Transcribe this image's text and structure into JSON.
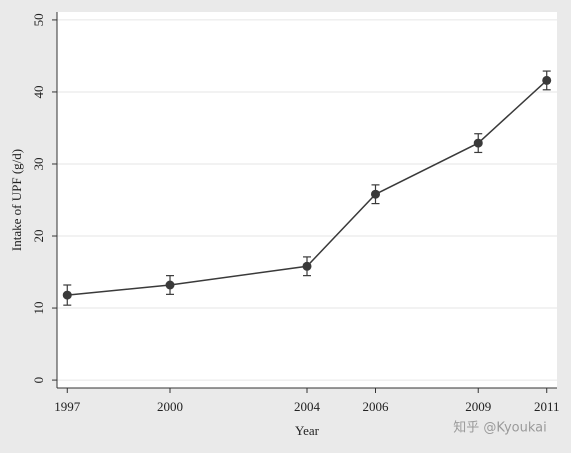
{
  "chart_data": {
    "type": "line",
    "x_label": "Year",
    "y_label": "Intake of UPF (g/d)",
    "x": [
      1997,
      2000,
      2004,
      2006,
      2009,
      2011
    ],
    "series": [
      {
        "color": "#3a3a3a",
        "values": [
          11.8,
          13.2,
          15.8,
          25.8,
          32.9,
          41.6
        ],
        "errors": [
          1.4,
          1.3,
          1.3,
          1.3,
          1.3,
          1.3
        ]
      }
    ],
    "xlim": [
      1996.7,
      2011.3
    ],
    "xticks": [
      1997,
      2000,
      2004,
      2006,
      2009,
      2011
    ],
    "ylim": [
      -1.1,
      51.1
    ],
    "yticks": [
      0,
      10,
      20,
      30,
      40,
      50
    ],
    "grid": true,
    "watermark": "知乎 @Kyoukai"
  }
}
